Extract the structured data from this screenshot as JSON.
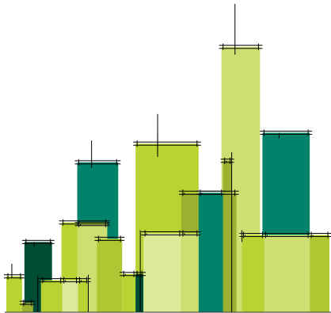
{
  "chart_data": {
    "type": "bar",
    "title": "",
    "xlabel": "",
    "ylabel": "",
    "ylim": [
      0,
      400
    ],
    "xlim": [
      0,
      420
    ],
    "grid": false,
    "legend": "none",
    "colors": {
      "dark_green": "#004d36",
      "teal": "#00836a",
      "lime": "#b7d433",
      "light_lime": "#cddf71",
      "pale_lime": "#dde899",
      "olive": "#9cb130",
      "mid_lime": "#adc832",
      "error_bar": "#000000",
      "axis": "#333333"
    },
    "bars": [
      {
        "x0": 31,
        "x1": 66,
        "value": 90,
        "color": "dark_green",
        "err_low": 4,
        "err_high": 0
      },
      {
        "x0": 98,
        "x1": 150,
        "value": 192,
        "color": "teal",
        "err_low": 5,
        "err_high": 28
      },
      {
        "x0": 333,
        "x1": 393,
        "value": 230,
        "color": "teal",
        "err_low": 5,
        "err_high": 0
      },
      {
        "x0": 281,
        "x1": 330,
        "value": 340,
        "color": "light_lime",
        "err_low": 8,
        "err_high": 55
      },
      {
        "x0": 172,
        "x1": 252,
        "value": 216,
        "color": "lime",
        "err_low": 15,
        "err_high": 38
      },
      {
        "x0": 78,
        "x1": 136,
        "value": 115,
        "color": "lime",
        "err_low": 2,
        "err_high": 0
      },
      {
        "x0": 98,
        "x1": 136,
        "value": 113,
        "color": "light_lime",
        "err_low": 0,
        "err_high": 0
      },
      {
        "x0": 230,
        "x1": 300,
        "value": 153,
        "color": "olive",
        "err_low": 0,
        "err_high": 0
      },
      {
        "x0": 252,
        "x1": 283,
        "value": 153,
        "color": "teal",
        "err_low": 0,
        "err_high": 0
      },
      {
        "x0": 123,
        "x1": 155,
        "value": 94,
        "color": "mid_lime",
        "err_low": 0,
        "err_high": 0
      },
      {
        "x0": 155,
        "x1": 172,
        "value": 49,
        "color": "lime",
        "err_low": 0,
        "err_high": 0
      },
      {
        "x0": 172,
        "x1": 182,
        "value": 49,
        "color": "dark_green",
        "err_low": 0,
        "err_high": 0
      },
      {
        "x0": 182,
        "x1": 230,
        "value": 101,
        "color": "pale_lime",
        "err_low": 0,
        "err_high": 0
      },
      {
        "x0": 230,
        "x1": 252,
        "value": 101,
        "color": "light_lime",
        "err_low": 0,
        "err_high": 0
      },
      {
        "x0": 8,
        "x1": 28,
        "value": 46,
        "color": "lime",
        "err_low": 0,
        "err_high": 16
      },
      {
        "x0": 28,
        "x1": 42,
        "value": 12,
        "color": "olive",
        "err_low": 0,
        "err_high": 0
      },
      {
        "x0": 52,
        "x1": 79,
        "value": 41,
        "color": "lime",
        "err_low": 0,
        "err_high": 0
      },
      {
        "x0": 79,
        "x1": 99,
        "value": 41,
        "color": "pale_lime",
        "err_low": 0,
        "err_high": 0
      },
      {
        "x0": 99,
        "x1": 112,
        "value": 41,
        "color": "lime",
        "err_low": 0,
        "err_high": 0
      },
      {
        "x0": 283,
        "x1": 294,
        "value": 194,
        "color": "olive",
        "err_low": 0,
        "err_high": 0
      },
      {
        "x0": 307,
        "x1": 335,
        "value": 99,
        "color": "lime",
        "err_low": 0,
        "err_high": 0
      },
      {
        "x0": 335,
        "x1": 393,
        "value": 99,
        "color": "light_lime",
        "err_low": 0,
        "err_high": 0
      },
      {
        "x0": 393,
        "x1": 418,
        "value": 99,
        "color": "mid_lime",
        "err_low": 0,
        "err_high": 0
      }
    ],
    "extra_marks": [
      {
        "x": 200,
        "y0": 203,
        "y1": 230
      },
      {
        "x": 294,
        "y0": 0,
        "y1": 205
      },
      {
        "x": 178,
        "y0": 0,
        "y1": 105
      },
      {
        "x": 48,
        "y0": 0,
        "y1": 46
      },
      {
        "x": 307,
        "y0": 90,
        "y1": 105
      },
      {
        "x": 112,
        "y0": 0,
        "y1": 48
      }
    ]
  }
}
